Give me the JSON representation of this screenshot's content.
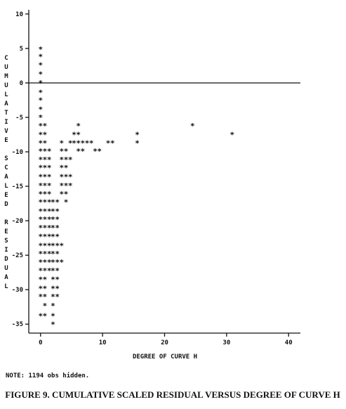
{
  "chart_data": {
    "type": "scatter",
    "title": "FIGURE 9. CUMULATIVE SCALED RESIDUAL VERSUS DEGREE OF CURVE H",
    "x_label": "DEGREE OF CURVE H",
    "y_label": "CUMULATIVE SCALED RESIDUAL",
    "note": "NOTE: 1194 obs hidden.",
    "xlim": [
      -1.9,
      41.9
    ],
    "ylim": [
      -36.3,
      10.6
    ],
    "xticks": [
      0,
      10,
      20,
      30,
      40
    ],
    "yticks": [
      10,
      5,
      0,
      -5,
      -10,
      -15,
      -20,
      -25,
      -30,
      -35
    ],
    "reference_line": 0,
    "marker": "*",
    "x": [
      0,
      0,
      0,
      0,
      0,
      0,
      0,
      0,
      0,
      0,
      0.7,
      6.1,
      24.5,
      0,
      0.7,
      5.4,
      6.1,
      15.6,
      30.9,
      0,
      0.7,
      3.4,
      4.8,
      5.4,
      6.1,
      6.8,
      7.5,
      8.2,
      10.9,
      11.6,
      15.6,
      0,
      0.7,
      1.4,
      3.4,
      4.1,
      6.1,
      6.8,
      8.8,
      9.5,
      0,
      0.7,
      1.4,
      3.4,
      4.1,
      4.8,
      0,
      0.7,
      1.4,
      3.4,
      4.1,
      0,
      0.7,
      1.4,
      3.4,
      4.1,
      4.8,
      0,
      0.7,
      1.4,
      3.4,
      4.1,
      4.8,
      0,
      0.7,
      1.4,
      3.4,
      4.1,
      0,
      0.7,
      1.4,
      2.0,
      2.7,
      4.1,
      0,
      0.7,
      1.4,
      2.0,
      2.7,
      0,
      0.7,
      1.4,
      2.0,
      2.7,
      0,
      0.7,
      1.4,
      2.0,
      2.7,
      0,
      0.7,
      1.4,
      2.0,
      2.7,
      0,
      0.7,
      1.4,
      2.0,
      2.7,
      3.4,
      0,
      0.7,
      1.4,
      2.0,
      2.7,
      0,
      0.7,
      1.4,
      2.0,
      2.7,
      3.4,
      0,
      0.7,
      1.4,
      2.0,
      2.7,
      0,
      0.7,
      2.0,
      2.7,
      0,
      0.7,
      2.0,
      2.7,
      0,
      0.7,
      2.0,
      2.7,
      0.7,
      2.0,
      0,
      0.7,
      2.0,
      2.0
    ],
    "series": [
      {
        "color": "#111111",
        "values": [
          5.1,
          4.0,
          2.8,
          1.5,
          0.2,
          -1.2,
          -2.3,
          -3.6,
          -4.8,
          -6.0,
          -6.0,
          -6.0,
          -6.0,
          -7.3,
          -7.3,
          -7.3,
          -7.3,
          -7.3,
          -7.3,
          -8.5,
          -8.5,
          -8.5,
          -8.5,
          -8.5,
          -8.5,
          -8.5,
          -8.5,
          -8.5,
          -8.5,
          -8.5,
          -8.5,
          -9.7,
          -9.7,
          -9.7,
          -9.7,
          -9.7,
          -9.7,
          -9.7,
          -9.7,
          -9.7,
          -10.9,
          -10.9,
          -10.9,
          -10.9,
          -10.9,
          -10.9,
          -12.1,
          -12.1,
          -12.1,
          -12.1,
          -12.1,
          -13.4,
          -13.4,
          -13.4,
          -13.4,
          -13.4,
          -13.4,
          -14.7,
          -14.7,
          -14.7,
          -14.7,
          -14.7,
          -14.7,
          -15.9,
          -15.9,
          -15.9,
          -15.9,
          -15.9,
          -17.1,
          -17.1,
          -17.1,
          -17.1,
          -17.1,
          -17.1,
          -18.4,
          -18.4,
          -18.4,
          -18.4,
          -18.4,
          -19.6,
          -19.6,
          -19.6,
          -19.6,
          -19.6,
          -20.8,
          -20.8,
          -20.8,
          -20.8,
          -20.8,
          -22.1,
          -22.1,
          -22.1,
          -22.1,
          -22.1,
          -23.4,
          -23.4,
          -23.4,
          -23.4,
          -23.4,
          -23.4,
          -24.6,
          -24.6,
          -24.6,
          -24.6,
          -24.6,
          -25.8,
          -25.8,
          -25.8,
          -25.8,
          -25.8,
          -25.8,
          -27.0,
          -27.0,
          -27.0,
          -27.0,
          -27.0,
          -28.3,
          -28.3,
          -28.3,
          -28.3,
          -29.6,
          -29.6,
          -29.6,
          -29.6,
          -30.8,
          -30.8,
          -30.8,
          -30.8,
          -32.1,
          -32.1,
          -33.6,
          -33.6,
          -33.6,
          -34.8
        ]
      }
    ]
  }
}
